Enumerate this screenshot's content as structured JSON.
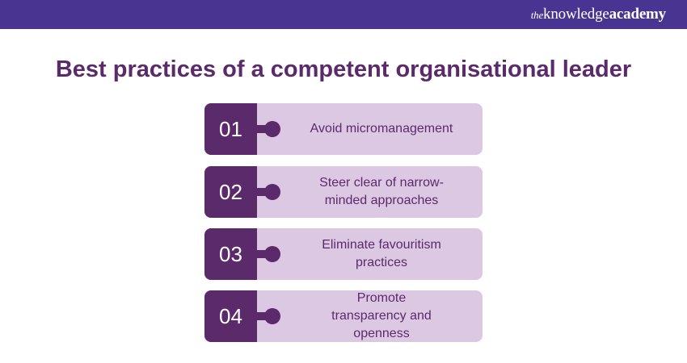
{
  "header": {
    "logo_prefix": "the",
    "logo_main": "knowledge",
    "logo_bold": "academy",
    "color": "#4a3491"
  },
  "title": "Best practices of a competent organisational leader",
  "colors": {
    "dark": "#5b2a6b",
    "light": "#dcc8e2"
  },
  "items": [
    {
      "number": "01",
      "text": "Avoid micromanagement"
    },
    {
      "number": "02",
      "text": "Steer clear of narrow-minded approaches"
    },
    {
      "number": "03",
      "text": "Eliminate favouritism practices"
    },
    {
      "number": "04",
      "text": "Promote transparency and openness"
    }
  ]
}
